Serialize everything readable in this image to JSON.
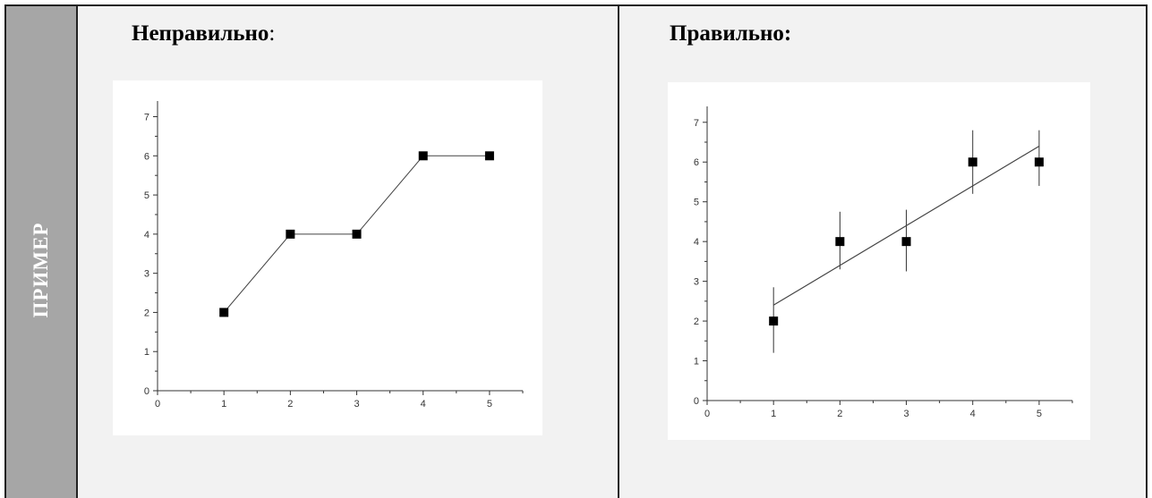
{
  "side_label": "ПРИМЕР",
  "left": {
    "heading": "Неправильно",
    "heading_colon": ":"
  },
  "right": {
    "heading": "Правильно:"
  },
  "chart_data": [
    {
      "type": "line",
      "x": [
        1,
        2,
        3,
        4,
        5
      ],
      "y": [
        2,
        4,
        4,
        6,
        6
      ],
      "marker": "square",
      "xlim": [
        0,
        5.5
      ],
      "ylim": [
        0,
        7.4
      ],
      "xticks": [
        "0",
        "1",
        "2",
        "3",
        "4",
        "5"
      ],
      "yticks": [
        "0",
        "1",
        "2",
        "3",
        "4",
        "5",
        "6",
        "7"
      ],
      "grid": false,
      "xlabel": "",
      "ylabel": ""
    },
    {
      "type": "scatter",
      "x": [
        1,
        2,
        3,
        4,
        5
      ],
      "y": [
        2,
        4,
        4,
        6,
        6
      ],
      "error_low": [
        0.8,
        0.7,
        0.75,
        0.8,
        0.6
      ],
      "error_high": [
        0.85,
        0.75,
        0.8,
        0.8,
        0.8
      ],
      "marker": "square",
      "fit_line": {
        "x": [
          1,
          5
        ],
        "y": [
          2.4,
          6.4
        ]
      },
      "xlim": [
        0,
        5.5
      ],
      "ylim": [
        0,
        7.4
      ],
      "xticks": [
        "0",
        "1",
        "2",
        "3",
        "4",
        "5"
      ],
      "yticks": [
        "0",
        "1",
        "2",
        "3",
        "4",
        "5",
        "6",
        "7"
      ],
      "grid": false,
      "xlabel": "",
      "ylabel": ""
    }
  ]
}
